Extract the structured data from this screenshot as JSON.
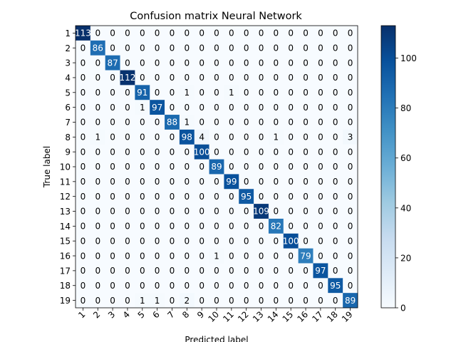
{
  "chart_data": {
    "type": "heatmap",
    "title": "Confusion matrix Neural Network",
    "xlabel": "Predicted label",
    "ylabel": "True label",
    "x_ticklabels": [
      "1",
      "2",
      "3",
      "4",
      "5",
      "6",
      "7",
      "8",
      "9",
      "10",
      "11",
      "12",
      "13",
      "14",
      "15",
      "16",
      "17",
      "18",
      "19"
    ],
    "y_ticklabels": [
      "1",
      "2",
      "3",
      "4",
      "5",
      "6",
      "7",
      "8",
      "9",
      "10",
      "11",
      "12",
      "13",
      "14",
      "15",
      "16",
      "17",
      "18",
      "19"
    ],
    "colormap": "Blues",
    "color_range": [
      0,
      113
    ],
    "colorbar_ticks": [
      0,
      20,
      40,
      60,
      80,
      100
    ],
    "matrix": [
      [
        113,
        0,
        0,
        0,
        0,
        0,
        0,
        0,
        0,
        0,
        0,
        0,
        0,
        0,
        0,
        0,
        0,
        0,
        0
      ],
      [
        0,
        86,
        0,
        0,
        0,
        0,
        0,
        0,
        0,
        0,
        0,
        0,
        0,
        0,
        0,
        0,
        0,
        0,
        0
      ],
      [
        0,
        0,
        87,
        0,
        0,
        0,
        0,
        0,
        0,
        0,
        0,
        0,
        0,
        0,
        0,
        0,
        0,
        0,
        0
      ],
      [
        0,
        0,
        0,
        112,
        0,
        0,
        0,
        0,
        0,
        0,
        0,
        0,
        0,
        0,
        0,
        0,
        0,
        0,
        0
      ],
      [
        0,
        0,
        0,
        0,
        91,
        0,
        0,
        1,
        0,
        0,
        1,
        0,
        0,
        0,
        0,
        0,
        0,
        0,
        0
      ],
      [
        0,
        0,
        0,
        0,
        1,
        97,
        0,
        0,
        0,
        0,
        0,
        0,
        0,
        0,
        0,
        0,
        0,
        0,
        0
      ],
      [
        0,
        0,
        0,
        0,
        0,
        0,
        88,
        1,
        0,
        0,
        0,
        0,
        0,
        0,
        0,
        0,
        0,
        0,
        0
      ],
      [
        0,
        1,
        0,
        0,
        0,
        0,
        0,
        98,
        4,
        0,
        0,
        0,
        0,
        1,
        0,
        0,
        0,
        0,
        3
      ],
      [
        0,
        0,
        0,
        0,
        0,
        0,
        0,
        0,
        100,
        0,
        0,
        0,
        0,
        0,
        0,
        0,
        0,
        0,
        0
      ],
      [
        0,
        0,
        0,
        0,
        0,
        0,
        0,
        0,
        0,
        89,
        0,
        0,
        0,
        0,
        0,
        0,
        0,
        0,
        0
      ],
      [
        0,
        0,
        0,
        0,
        0,
        0,
        0,
        0,
        0,
        0,
        99,
        0,
        0,
        0,
        0,
        0,
        0,
        0,
        0
      ],
      [
        0,
        0,
        0,
        0,
        0,
        0,
        0,
        0,
        0,
        0,
        0,
        95,
        0,
        0,
        0,
        0,
        0,
        0,
        0
      ],
      [
        0,
        0,
        0,
        0,
        0,
        0,
        0,
        0,
        0,
        0,
        0,
        0,
        109,
        0,
        0,
        0,
        0,
        0,
        0
      ],
      [
        0,
        0,
        0,
        0,
        0,
        0,
        0,
        0,
        0,
        0,
        0,
        0,
        0,
        82,
        0,
        0,
        0,
        0,
        0
      ],
      [
        0,
        0,
        0,
        0,
        0,
        0,
        0,
        0,
        0,
        0,
        0,
        0,
        0,
        0,
        100,
        0,
        0,
        0,
        0
      ],
      [
        0,
        0,
        0,
        0,
        0,
        0,
        0,
        0,
        0,
        1,
        0,
        0,
        0,
        0,
        0,
        79,
        0,
        0,
        0
      ],
      [
        0,
        0,
        0,
        0,
        0,
        0,
        0,
        0,
        0,
        0,
        0,
        0,
        0,
        0,
        0,
        0,
        97,
        0,
        0
      ],
      [
        0,
        0,
        0,
        0,
        0,
        0,
        0,
        0,
        0,
        0,
        0,
        0,
        0,
        0,
        0,
        0,
        0,
        95,
        0
      ],
      [
        0,
        0,
        0,
        0,
        1,
        1,
        0,
        2,
        0,
        0,
        0,
        0,
        0,
        0,
        0,
        0,
        0,
        0,
        89
      ]
    ]
  }
}
